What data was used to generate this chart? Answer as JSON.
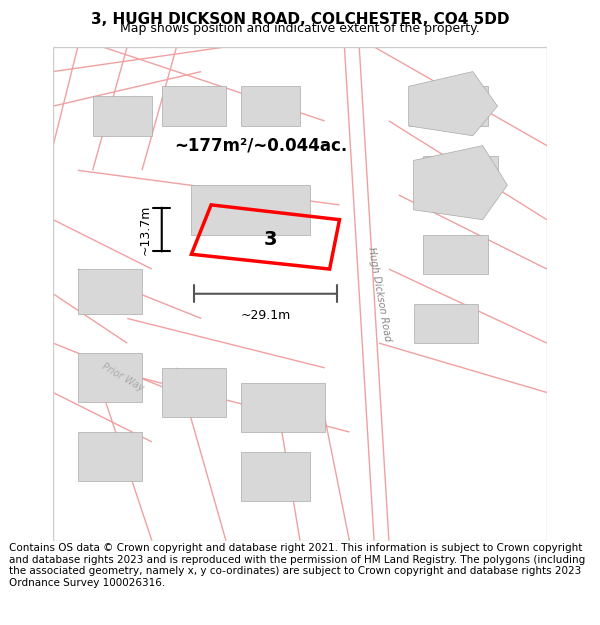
{
  "title": "3, HUGH DICKSON ROAD, COLCHESTER, CO4 5DD",
  "subtitle": "Map shows position and indicative extent of the property.",
  "footer": "Contains OS data © Crown copyright and database right 2021. This information is subject to Crown copyright and database rights 2023 and is reproduced with the permission of HM Land Registry. The polygons (including the associated geometry, namely x, y co-ordinates) are subject to Crown copyright and database rights 2023 Ordnance Survey 100026316.",
  "bg_color": "#f5f5f5",
  "map_bg": "#ffffff",
  "road_color": "#f0a0a0",
  "building_color": "#d8d8d8",
  "highlight_color": "#ff0000",
  "area_text": "~177m²/~0.044ac.",
  "width_text": "~29.1m",
  "height_text": "~13.7m",
  "plot_number": "3",
  "road_label": "Hugh Dickson Road",
  "street_label": "Prior Way",
  "title_fontsize": 11,
  "subtitle_fontsize": 9,
  "footer_fontsize": 7.5
}
